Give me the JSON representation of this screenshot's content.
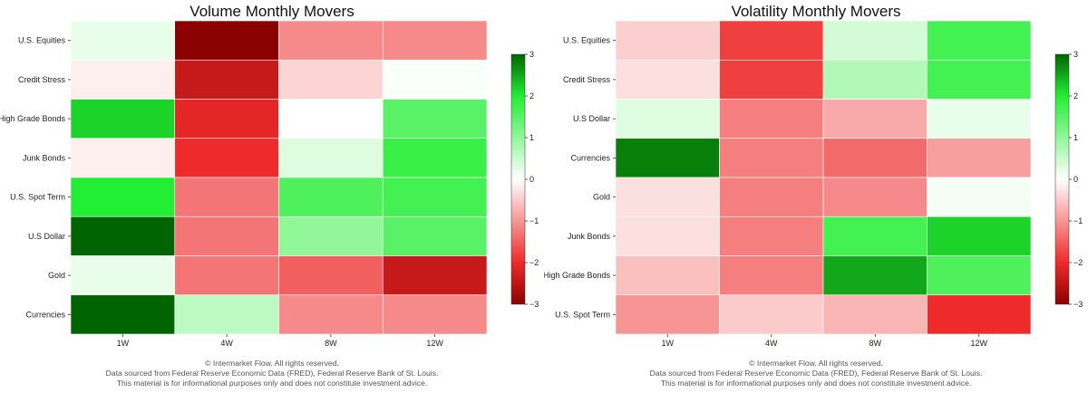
{
  "colors": {
    "max": "#006400",
    "positive_bright": "#22ee33",
    "zero": "#ffffff",
    "negative_bright": "#ee2a2a",
    "min": "#8b0000",
    "gridline": "#ffffff"
  },
  "chart_data": [
    {
      "type": "heatmap",
      "title": "Volume Monthly Movers",
      "columns": [
        "1W",
        "4W",
        "8W",
        "12W"
      ],
      "rows": [
        "U.S. Equities",
        "Credit Stress",
        "High Grade Bonds",
        "Junk Bonds",
        "U.S. Spot Term",
        "U.S Dollar",
        "Gold",
        "Currencies"
      ],
      "values": [
        [
          0.2,
          -3.0,
          -1.1,
          -1.1
        ],
        [
          -0.15,
          -2.4,
          -0.4,
          0.05
        ],
        [
          2.2,
          -2.1,
          0.0,
          1.5
        ],
        [
          -0.15,
          -2.0,
          0.3,
          1.8
        ],
        [
          2.0,
          -1.3,
          1.6,
          1.7
        ],
        [
          3.0,
          -1.3,
          1.0,
          1.5
        ],
        [
          0.2,
          -1.3,
          -1.5,
          -2.4
        ],
        [
          3.0,
          0.6,
          -1.1,
          -1.1
        ]
      ],
      "colorbar": {
        "min": -3,
        "max": 3,
        "ticks": [
          3,
          2,
          1,
          0,
          -1,
          -2,
          -3
        ],
        "tick_labels": [
          "3",
          "2",
          "1",
          "0",
          "−1",
          "−2",
          "−3"
        ]
      }
    },
    {
      "type": "heatmap",
      "title": "Volatility Monthly Movers",
      "columns": [
        "1W",
        "4W",
        "8W",
        "12W"
      ],
      "rows": [
        "U.S. Equities",
        "Credit Stress",
        "U.S Dollar",
        "Currencies",
        "Gold",
        "Junk Bonds",
        "High Grade Bonds",
        "U.S. Spot Term"
      ],
      "values": [
        [
          -0.45,
          -1.8,
          0.4,
          1.7
        ],
        [
          -0.3,
          -1.8,
          0.7,
          1.7
        ],
        [
          0.3,
          -1.2,
          -0.8,
          0.2
        ],
        [
          2.8,
          -1.2,
          -1.4,
          -0.9
        ],
        [
          -0.3,
          -1.2,
          -1.1,
          0.1
        ],
        [
          -0.3,
          -1.2,
          1.7,
          2.2
        ],
        [
          -0.6,
          -1.2,
          2.5,
          1.6
        ],
        [
          -1.0,
          -0.5,
          -0.7,
          -2.0
        ]
      ],
      "colorbar": {
        "min": -3,
        "max": 3,
        "ticks": [
          3,
          2,
          1,
          0,
          -1,
          -2,
          -3
        ],
        "tick_labels": [
          "3",
          "2",
          "1",
          "0",
          "−1",
          "−2",
          "−3"
        ]
      }
    }
  ],
  "footer": {
    "line1": "© Intermarket Flow. All rights reserved.",
    "line2": "Data sourced from Federal Reserve Economic Data (FRED), Federal Reserve Bank of St. Louis.",
    "line3": "This material is for informational purposes only and does not constitute investment advice."
  }
}
